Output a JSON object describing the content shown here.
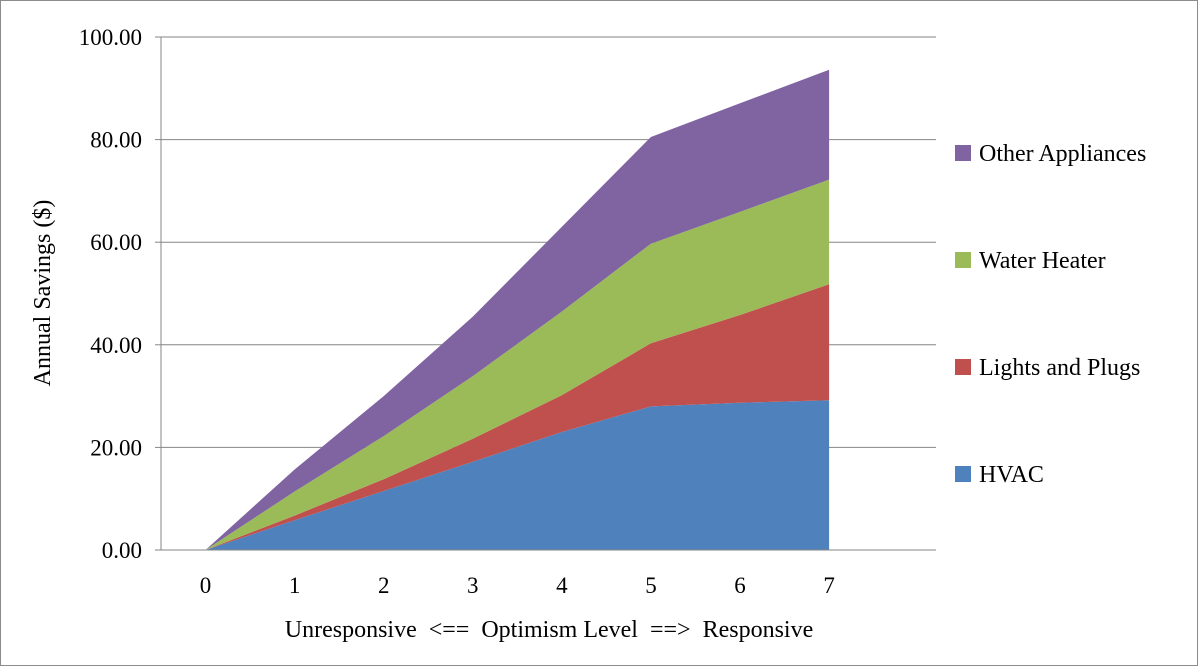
{
  "chart_data": {
    "type": "area",
    "stacked": true,
    "x": [
      0,
      1,
      2,
      3,
      4,
      5,
      6,
      7
    ],
    "categories": [
      "0",
      "1",
      "2",
      "3",
      "4",
      "5",
      "6",
      "7"
    ],
    "xlabel": "Unresponsive  <==  Optimism Level  ==>  Responsive",
    "ylabel": "Annual Savings ($)",
    "ylim": [
      0,
      100
    ],
    "yticks": [
      "0.00",
      "20.00",
      "40.00",
      "60.00",
      "80.00",
      "100.00"
    ],
    "grid": "horizontal",
    "legend_position": "right",
    "series": [
      {
        "name": "HVAC",
        "color": "#4f81bd",
        "values": [
          0,
          5.8,
          11.5,
          17.2,
          23.0,
          28.0,
          28.7,
          29.2
        ]
      },
      {
        "name": "Lights and Plugs",
        "color": "#c0504d",
        "values": [
          0,
          0.9,
          2.3,
          4.5,
          7.2,
          12.3,
          17.1,
          22.6
        ]
      },
      {
        "name": "Water Heater",
        "color": "#9bbb59",
        "values": [
          0,
          4.7,
          8.4,
          12.2,
          16.3,
          19.4,
          20.1,
          20.4
        ]
      },
      {
        "name": "Other Appliances",
        "color": "#8064a2",
        "values": [
          0,
          4.3,
          7.8,
          11.6,
          16.5,
          20.8,
          21.2,
          21.4
        ]
      }
    ]
  }
}
